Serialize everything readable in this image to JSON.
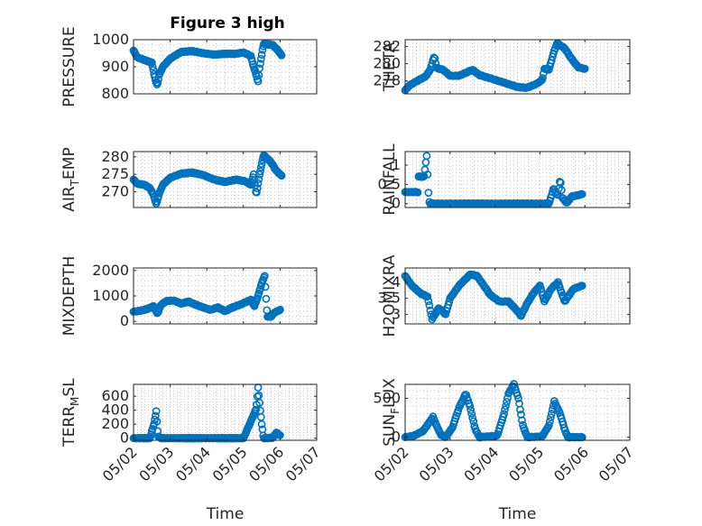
{
  "title": "Figure 3 high",
  "colors": {
    "marker": "#0072BD",
    "axis": "#262626",
    "grid": "#c8c8c8"
  },
  "chart_data": [
    {
      "type": "scatter",
      "ylabel": "PRESSURE",
      "ylim": [
        800,
        1000
      ],
      "yticks": [
        800,
        900,
        1000
      ],
      "ytick_labels": [
        "800",
        "900",
        "1000"
      ],
      "xlim": [
        0,
        5
      ],
      "xticks": [
        0,
        1,
        2,
        3,
        4,
        5
      ],
      "xtick_labels": [
        "05/02",
        "05/03",
        "05/04",
        "05/05",
        "05/06",
        "05/07"
      ],
      "show_xticklabels": false,
      "xlabel": "",
      "grid": true,
      "keys": [
        [
          0.0,
          960
        ],
        [
          0.1,
          935
        ],
        [
          0.3,
          925
        ],
        [
          0.5,
          915
        ],
        [
          0.55,
          880
        ],
        [
          0.62,
          840
        ],
        [
          0.65,
          833
        ],
        [
          0.7,
          870
        ],
        [
          0.8,
          900
        ],
        [
          1.0,
          930
        ],
        [
          1.3,
          955
        ],
        [
          1.6,
          958
        ],
        [
          1.9,
          950
        ],
        [
          2.2,
          945
        ],
        [
          2.5,
          948
        ],
        [
          2.8,
          948
        ],
        [
          3.0,
          953
        ],
        [
          3.2,
          940
        ],
        [
          3.28,
          900
        ],
        [
          3.35,
          870
        ],
        [
          3.4,
          845
        ],
        [
          3.45,
          905
        ],
        [
          3.55,
          985
        ],
        [
          3.8,
          980
        ],
        [
          3.95,
          960
        ],
        [
          4.05,
          940
        ]
      ]
    },
    {
      "type": "scatter",
      "ylabel": "THETA",
      "ylim": [
        276.5,
        282.8
      ],
      "yticks": [
        278,
        280,
        282
      ],
      "ytick_labels": [
        "278",
        "280",
        "282"
      ],
      "xlim": [
        0,
        5
      ],
      "xticks": [
        0,
        1,
        2,
        3,
        4,
        5
      ],
      "xtick_labels": [
        "05/02",
        "05/03",
        "05/04",
        "05/05",
        "05/06",
        "05/07"
      ],
      "show_xticklabels": false,
      "xlabel": "",
      "grid": true,
      "keys": [
        [
          0.0,
          276.9
        ],
        [
          0.1,
          277.5
        ],
        [
          0.3,
          278.1
        ],
        [
          0.45,
          278.5
        ],
        [
          0.55,
          279.2
        ],
        [
          0.65,
          280.9
        ],
        [
          0.7,
          279.5
        ],
        [
          0.85,
          279.3
        ],
        [
          1.0,
          278.6
        ],
        [
          1.2,
          278.6
        ],
        [
          1.5,
          279.3
        ],
        [
          1.65,
          278.7
        ],
        [
          1.9,
          278.3
        ],
        [
          2.2,
          277.8
        ],
        [
          2.5,
          277.3
        ],
        [
          2.7,
          277.2
        ],
        [
          2.9,
          277.6
        ],
        [
          3.05,
          278.1
        ],
        [
          3.1,
          279.4
        ],
        [
          3.2,
          279.3
        ],
        [
          3.3,
          281.2
        ],
        [
          3.38,
          282.4
        ],
        [
          3.55,
          281.8
        ],
        [
          3.7,
          280.6
        ],
        [
          3.85,
          279.6
        ],
        [
          4.0,
          279.4
        ]
      ]
    },
    {
      "type": "scatter",
      "ylabel": "AIR_TEMP",
      "ylim": [
        265.5,
        281.5
      ],
      "yticks": [
        270,
        275,
        280
      ],
      "ytick_labels": [
        "270",
        "275",
        "280"
      ],
      "xlim": [
        0,
        5
      ],
      "xticks": [
        0,
        1,
        2,
        3,
        4,
        5
      ],
      "xtick_labels": [
        "05/02",
        "05/03",
        "05/04",
        "05/05",
        "05/06",
        "05/07"
      ],
      "show_xticklabels": false,
      "xlabel": "",
      "grid": true,
      "keys": [
        [
          0.0,
          273.5
        ],
        [
          0.1,
          272.3
        ],
        [
          0.3,
          272.0
        ],
        [
          0.45,
          271.0
        ],
        [
          0.55,
          269.0
        ],
        [
          0.62,
          266.5
        ],
        [
          0.7,
          269.5
        ],
        [
          0.8,
          272.0
        ],
        [
          1.0,
          274.0
        ],
        [
          1.3,
          275.2
        ],
        [
          1.6,
          275.5
        ],
        [
          1.9,
          274.8
        ],
        [
          2.2,
          273.5
        ],
        [
          2.5,
          272.8
        ],
        [
          2.8,
          273.5
        ],
        [
          3.05,
          273.0
        ],
        [
          3.2,
          272.0
        ],
        [
          3.28,
          275.0
        ],
        [
          3.35,
          269.2
        ],
        [
          3.45,
          275.5
        ],
        [
          3.55,
          280.5
        ],
        [
          3.75,
          278.5
        ],
        [
          3.9,
          276.0
        ],
        [
          4.05,
          274.5
        ]
      ]
    },
    {
      "type": "scatter",
      "ylabel": "RAINFALL",
      "ylim": [
        -0.1,
        1.35
      ],
      "yticks": [
        0,
        0.5,
        1
      ],
      "ytick_labels": [
        "0",
        "0.5",
        "1"
      ],
      "xlim": [
        0,
        5
      ],
      "xticks": [
        0,
        1,
        2,
        3,
        4,
        5
      ],
      "xtick_labels": [
        "05/02",
        "05/03",
        "05/04",
        "05/05",
        "05/06",
        "05/07"
      ],
      "show_xticklabels": false,
      "xlabel": "",
      "grid": true,
      "keys": [
        [
          0.0,
          0.3
        ],
        [
          0.28,
          0.3
        ],
        [
          0.3,
          0.7
        ],
        [
          0.42,
          0.7
        ],
        [
          0.48,
          1.25
        ],
        [
          0.5,
          0.75
        ],
        [
          0.53,
          0.05
        ],
        [
          0.56,
          0.0
        ],
        [
          3.2,
          0.0
        ],
        [
          3.3,
          0.38
        ],
        [
          3.4,
          0.22
        ],
        [
          3.45,
          0.65
        ],
        [
          3.5,
          0.15
        ],
        [
          3.6,
          0.02
        ],
        [
          3.7,
          0.18
        ],
        [
          3.95,
          0.25
        ]
      ]
    },
    {
      "type": "scatter",
      "ylabel": "MIXDEPTH",
      "ylim": [
        -100,
        2100
      ],
      "yticks": [
        0,
        1000,
        2000
      ],
      "ytick_labels": [
        "0",
        "1000",
        "2000"
      ],
      "xlim": [
        0,
        5
      ],
      "xticks": [
        0,
        1,
        2,
        3,
        4,
        5
      ],
      "xtick_labels": [
        "05/02",
        "05/03",
        "05/04",
        "05/05",
        "05/06",
        "05/07"
      ],
      "show_xticklabels": false,
      "xlabel": "",
      "grid": true,
      "keys": [
        [
          0.0,
          380
        ],
        [
          0.2,
          420
        ],
        [
          0.4,
          500
        ],
        [
          0.55,
          600
        ],
        [
          0.65,
          300
        ],
        [
          0.75,
          650
        ],
        [
          0.9,
          800
        ],
        [
          1.1,
          820
        ],
        [
          1.3,
          700
        ],
        [
          1.5,
          780
        ],
        [
          1.7,
          650
        ],
        [
          1.9,
          550
        ],
        [
          2.1,
          450
        ],
        [
          2.3,
          550
        ],
        [
          2.5,
          400
        ],
        [
          2.7,
          550
        ],
        [
          2.9,
          650
        ],
        [
          3.05,
          750
        ],
        [
          3.2,
          850
        ],
        [
          3.3,
          600
        ],
        [
          3.4,
          1000
        ],
        [
          3.5,
          1500
        ],
        [
          3.58,
          1800
        ],
        [
          3.65,
          200
        ],
        [
          3.75,
          180
        ],
        [
          3.85,
          350
        ],
        [
          4.0,
          450
        ]
      ]
    },
    {
      "type": "scatter",
      "ylabel": "H2OMIXRA",
      "ylim": [
        2.7,
        4.45
      ],
      "yticks": [
        3,
        3.5,
        4
      ],
      "ytick_labels": [
        "3",
        "3.5",
        "4"
      ],
      "xlim": [
        0,
        5
      ],
      "xticks": [
        0,
        1,
        2,
        3,
        4,
        5
      ],
      "xtick_labels": [
        "05/02",
        "05/03",
        "05/04",
        "05/05",
        "05/06",
        "05/07"
      ],
      "show_xticklabels": false,
      "xlabel": "",
      "grid": true,
      "keys": [
        [
          0.0,
          4.2
        ],
        [
          0.15,
          3.9
        ],
        [
          0.35,
          3.65
        ],
        [
          0.5,
          3.55
        ],
        [
          0.6,
          2.85
        ],
        [
          0.75,
          3.2
        ],
        [
          0.9,
          3.0
        ],
        [
          1.0,
          3.5
        ],
        [
          1.2,
          3.9
        ],
        [
          1.45,
          4.25
        ],
        [
          1.6,
          4.2
        ],
        [
          1.75,
          3.9
        ],
        [
          1.9,
          3.6
        ],
        [
          2.1,
          3.4
        ],
        [
          2.3,
          3.4
        ],
        [
          2.5,
          3.1
        ],
        [
          2.58,
          2.95
        ],
        [
          2.7,
          3.3
        ],
        [
          2.85,
          3.65
        ],
        [
          3.0,
          3.9
        ],
        [
          3.1,
          3.4
        ],
        [
          3.25,
          3.8
        ],
        [
          3.4,
          4.0
        ],
        [
          3.55,
          3.4
        ],
        [
          3.75,
          3.8
        ],
        [
          3.95,
          3.9
        ]
      ]
    },
    {
      "type": "scatter",
      "ylabel": "TERR_MSL",
      "ylim": [
        -30,
        770
      ],
      "yticks": [
        0,
        200,
        400,
        600
      ],
      "ytick_labels": [
        "0",
        "200",
        "400",
        "600"
      ],
      "xlim": [
        0,
        5
      ],
      "xticks": [
        0,
        1,
        2,
        3,
        4,
        5
      ],
      "xtick_labels": [
        "05/02",
        "05/03",
        "05/04",
        "05/05",
        "05/06",
        "05/07"
      ],
      "show_xticklabels": true,
      "xlabel": "Time",
      "grid": true,
      "keys": [
        [
          0.0,
          0
        ],
        [
          0.45,
          0
        ],
        [
          0.5,
          100
        ],
        [
          0.55,
          180
        ],
        [
          0.62,
          380
        ],
        [
          0.67,
          30
        ],
        [
          0.75,
          0
        ],
        [
          3.0,
          0
        ],
        [
          3.1,
          120
        ],
        [
          3.25,
          300
        ],
        [
          3.35,
          420
        ],
        [
          3.4,
          720
        ],
        [
          3.45,
          450
        ],
        [
          3.5,
          200
        ],
        [
          3.55,
          0
        ],
        [
          3.8,
          5
        ],
        [
          3.9,
          80
        ],
        [
          4.0,
          40
        ]
      ]
    },
    {
      "type": "scatter",
      "ylabel": "SUN_FLUX",
      "ylim": [
        -40,
        680
      ],
      "yticks": [
        0,
        500
      ],
      "ytick_labels": [
        "0",
        "500"
      ],
      "xlim": [
        0,
        5
      ],
      "xticks": [
        0,
        1,
        2,
        3,
        4,
        5
      ],
      "xtick_labels": [
        "05/02",
        "05/03",
        "05/04",
        "05/05",
        "05/06",
        "05/07"
      ],
      "show_xticklabels": true,
      "xlabel": "Time",
      "grid": true,
      "keys": [
        [
          0.0,
          0
        ],
        [
          0.2,
          20
        ],
        [
          0.4,
          80
        ],
        [
          0.55,
          200
        ],
        [
          0.62,
          260
        ],
        [
          0.72,
          120
        ],
        [
          0.8,
          30
        ],
        [
          0.9,
          0
        ],
        [
          1.05,
          120
        ],
        [
          1.2,
          380
        ],
        [
          1.35,
          560
        ],
        [
          1.45,
          380
        ],
        [
          1.55,
          120
        ],
        [
          1.65,
          0
        ],
        [
          2.05,
          20
        ],
        [
          2.2,
          300
        ],
        [
          2.3,
          560
        ],
        [
          2.42,
          680
        ],
        [
          2.52,
          500
        ],
        [
          2.62,
          150
        ],
        [
          2.72,
          0
        ],
        [
          3.05,
          10
        ],
        [
          3.2,
          150
        ],
        [
          3.32,
          460
        ],
        [
          3.45,
          300
        ],
        [
          3.55,
          100
        ],
        [
          3.62,
          0
        ],
        [
          3.95,
          0
        ]
      ]
    }
  ]
}
